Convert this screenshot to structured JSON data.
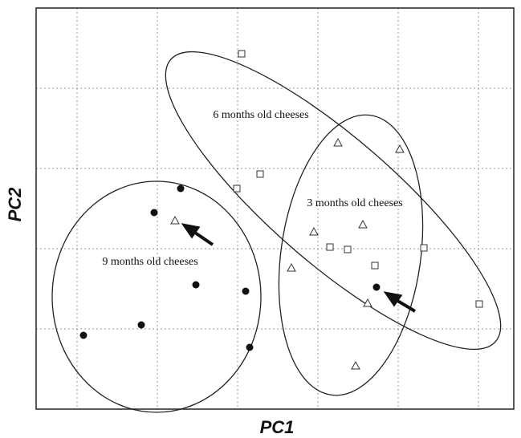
{
  "chart_data": {
    "type": "scatter",
    "x_label": "PC1",
    "y_label": "PC2",
    "xlim": [
      0.49,
      6.44
    ],
    "ylim": [
      0,
      5
    ],
    "xticks": [
      1,
      2,
      3,
      4,
      5,
      6
    ],
    "yticks": [
      1,
      2,
      3,
      4
    ],
    "grid": true,
    "series": [
      {
        "color": "#111111",
        "marker": "circle-filled",
        "x": [
          2.29,
          1.96,
          2.48,
          3.1,
          1.8,
          1.08,
          3.15,
          4.73
        ],
        "values": [
          2.75,
          2.45,
          1.55,
          1.47,
          1.05,
          0.92,
          0.77,
          1.52
        ]
      },
      {
        "color": "#333333",
        "marker": "triangle-open",
        "x": [
          2.22,
          4.25,
          5.02,
          4.56,
          3.95,
          3.67,
          4.62,
          4.47
        ],
        "values": [
          2.35,
          3.32,
          3.24,
          2.3,
          2.21,
          1.76,
          1.32,
          0.54
        ]
      },
      {
        "color": "#333333",
        "marker": "square-open",
        "x": [
          3.05,
          3.28,
          2.99,
          4.15,
          4.37,
          4.71,
          5.32,
          6.01
        ],
        "values": [
          4.43,
          2.93,
          2.75,
          2.02,
          1.99,
          1.79,
          2.01,
          1.31
        ]
      }
    ],
    "annotations": [
      "6 months old cheeses",
      "3 months old cheeses",
      "9 months old cheeses"
    ]
  }
}
